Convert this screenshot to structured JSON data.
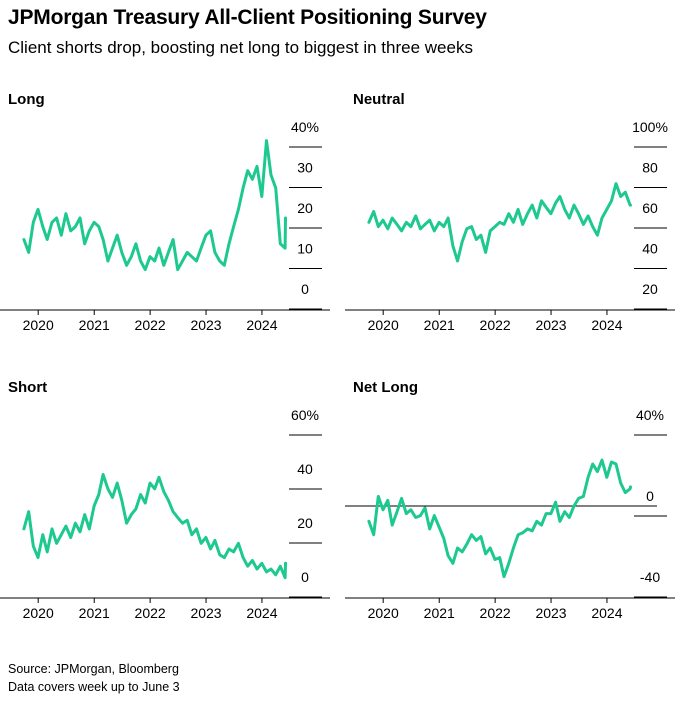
{
  "title": "JPMorgan Treasury All-Client Positioning Survey",
  "subtitle": "Client shorts drop, boosting net long to biggest in three weeks",
  "footer": {
    "source": "Source: JPMorgan, Bloomberg",
    "note": "Data covers week up to June 3"
  },
  "colors": {
    "series": "#1ec98f",
    "axis": "#000000",
    "text": "#000000"
  },
  "chart_data": [
    {
      "type": "line",
      "panel_title": "Long",
      "series": [
        {
          "name": "Long",
          "color": "#1ec98f",
          "x": [
            "2019-09-30",
            "2019-10-31",
            "2019-11-30",
            "2019-12-31",
            "2020-01-31",
            "2020-02-29",
            "2020-03-31",
            "2020-04-30",
            "2020-05-31",
            "2020-06-30",
            "2020-07-31",
            "2020-08-31",
            "2020-09-30",
            "2020-10-31",
            "2020-11-30",
            "2020-12-31",
            "2021-01-31",
            "2021-02-28",
            "2021-03-31",
            "2021-04-30",
            "2021-05-31",
            "2021-06-30",
            "2021-07-31",
            "2021-08-31",
            "2021-09-30",
            "2021-10-31",
            "2021-11-30",
            "2021-12-31",
            "2022-01-31",
            "2022-02-28",
            "2022-03-31",
            "2022-04-30",
            "2022-05-31",
            "2022-06-30",
            "2022-07-31",
            "2022-08-31",
            "2022-09-30",
            "2022-10-31",
            "2022-11-30",
            "2022-12-31",
            "2023-01-31",
            "2023-02-28",
            "2023-03-31",
            "2023-04-30",
            "2023-05-31",
            "2023-06-30",
            "2023-07-31",
            "2023-08-31",
            "2023-09-30",
            "2023-10-31",
            "2023-11-30",
            "2023-12-31",
            "2024-01-31",
            "2024-02-29",
            "2024-03-31",
            "2024-04-30",
            "2024-05-31",
            "2024-06-03"
          ],
          "values": [
            15,
            12,
            19,
            22,
            18,
            15,
            19,
            20,
            16,
            21,
            17,
            18,
            20,
            14,
            17,
            19,
            18,
            15,
            10,
            13,
            16,
            12,
            9,
            11,
            14,
            10,
            8,
            11,
            10,
            13,
            9,
            12,
            15,
            8,
            10,
            12,
            11,
            10,
            13,
            16,
            17,
            12,
            10,
            9,
            14,
            18,
            22,
            27,
            31,
            29,
            32,
            25,
            38,
            30,
            27,
            14,
            13,
            20
          ]
        }
      ],
      "x_ticks": [
        "2020",
        "2021",
        "2022",
        "2023",
        "2024"
      ],
      "y_ticks": [
        "40%",
        "30",
        "20",
        "10",
        "0"
      ],
      "ylim": [
        0,
        40
      ]
    },
    {
      "type": "line",
      "panel_title": "Neutral",
      "series": [
        {
          "name": "Neutral",
          "color": "#1ec98f",
          "x": [
            "2019-09-30",
            "2019-10-31",
            "2019-11-30",
            "2019-12-31",
            "2020-01-31",
            "2020-02-29",
            "2020-03-31",
            "2020-04-30",
            "2020-05-31",
            "2020-06-30",
            "2020-07-31",
            "2020-08-31",
            "2020-09-30",
            "2020-10-31",
            "2020-11-30",
            "2020-12-31",
            "2021-01-31",
            "2021-02-28",
            "2021-03-31",
            "2021-04-30",
            "2021-05-31",
            "2021-06-30",
            "2021-07-31",
            "2021-08-31",
            "2021-09-30",
            "2021-10-31",
            "2021-11-30",
            "2021-12-31",
            "2022-01-31",
            "2022-02-28",
            "2022-03-31",
            "2022-04-30",
            "2022-05-31",
            "2022-06-30",
            "2022-07-31",
            "2022-08-31",
            "2022-09-30",
            "2022-10-31",
            "2022-11-30",
            "2022-12-31",
            "2023-01-31",
            "2023-02-28",
            "2023-03-31",
            "2023-04-30",
            "2023-05-31",
            "2023-06-30",
            "2023-07-31",
            "2023-08-31",
            "2023-09-30",
            "2023-10-31",
            "2023-11-30",
            "2023-12-31",
            "2024-01-31",
            "2024-02-29",
            "2024-03-31",
            "2024-04-30",
            "2024-05-31",
            "2024-06-03"
          ],
          "values": [
            58,
            63,
            56,
            59,
            55,
            60,
            57,
            54,
            58,
            56,
            61,
            55,
            57,
            59,
            54,
            58,
            56,
            60,
            47,
            40,
            49,
            55,
            56,
            50,
            52,
            44,
            54,
            56,
            58,
            57,
            62,
            58,
            64,
            57,
            62,
            66,
            60,
            68,
            65,
            62,
            67,
            70,
            64,
            60,
            66,
            62,
            57,
            61,
            56,
            52,
            60,
            64,
            68,
            76,
            70,
            72,
            66,
            66
          ]
        }
      ],
      "x_ticks": [
        "2020",
        "2021",
        "2022",
        "2023",
        "2024"
      ],
      "y_ticks": [
        "100%",
        "80",
        "60",
        "40",
        "20"
      ],
      "ylim": [
        20,
        100
      ]
    },
    {
      "type": "line",
      "panel_title": "Short",
      "series": [
        {
          "name": "Short",
          "color": "#1ec98f",
          "x": [
            "2019-09-30",
            "2019-10-31",
            "2019-11-30",
            "2019-12-31",
            "2020-01-31",
            "2020-02-29",
            "2020-03-31",
            "2020-04-30",
            "2020-05-31",
            "2020-06-30",
            "2020-07-31",
            "2020-08-31",
            "2020-09-30",
            "2020-10-31",
            "2020-11-30",
            "2020-12-31",
            "2021-01-31",
            "2021-02-28",
            "2021-03-31",
            "2021-04-30",
            "2021-05-31",
            "2021-06-30",
            "2021-07-31",
            "2021-08-31",
            "2021-09-30",
            "2021-10-31",
            "2021-11-30",
            "2021-12-31",
            "2022-01-31",
            "2022-02-28",
            "2022-03-31",
            "2022-04-30",
            "2022-05-31",
            "2022-06-30",
            "2022-07-31",
            "2022-08-31",
            "2022-09-30",
            "2022-10-31",
            "2022-11-30",
            "2022-12-31",
            "2023-01-31",
            "2023-02-28",
            "2023-03-31",
            "2023-04-30",
            "2023-05-31",
            "2023-06-30",
            "2023-07-31",
            "2023-08-31",
            "2023-09-30",
            "2023-10-31",
            "2023-11-30",
            "2023-12-31",
            "2024-01-31",
            "2024-02-29",
            "2024-03-31",
            "2024-04-30",
            "2024-05-31",
            "2024-06-03"
          ],
          "values": [
            22,
            28,
            16,
            12,
            20,
            14,
            22,
            17,
            20,
            23,
            19,
            24,
            21,
            27,
            22,
            30,
            34,
            41,
            36,
            33,
            38,
            32,
            24,
            27,
            29,
            34,
            31,
            38,
            36,
            40,
            35,
            32,
            28,
            26,
            24,
            25,
            20,
            22,
            17,
            19,
            15,
            18,
            13,
            12,
            15,
            14,
            17,
            12,
            9,
            11,
            8,
            10,
            7,
            8,
            6,
            9,
            5,
            10
          ]
        }
      ],
      "x_ticks": [
        "2020",
        "2021",
        "2022",
        "2023",
        "2024"
      ],
      "y_ticks": [
        "60%",
        "40",
        "20",
        "0"
      ],
      "ylim": [
        0,
        60
      ]
    },
    {
      "type": "line",
      "panel_title": "Net Long",
      "series": [
        {
          "name": "Net Long",
          "color": "#1ec98f",
          "x": [
            "2019-09-30",
            "2019-10-31",
            "2019-11-30",
            "2019-12-31",
            "2020-01-31",
            "2020-02-29",
            "2020-03-31",
            "2020-04-30",
            "2020-05-31",
            "2020-06-30",
            "2020-07-31",
            "2020-08-31",
            "2020-09-30",
            "2020-10-31",
            "2020-11-30",
            "2020-12-31",
            "2021-01-31",
            "2021-02-28",
            "2021-03-31",
            "2021-04-30",
            "2021-05-31",
            "2021-06-30",
            "2021-07-31",
            "2021-08-31",
            "2021-09-30",
            "2021-10-31",
            "2021-11-30",
            "2021-12-31",
            "2022-01-31",
            "2022-02-28",
            "2022-03-31",
            "2022-04-30",
            "2022-05-31",
            "2022-06-30",
            "2022-07-31",
            "2022-08-31",
            "2022-09-30",
            "2022-10-31",
            "2022-11-30",
            "2022-12-31",
            "2023-01-31",
            "2023-02-28",
            "2023-03-31",
            "2023-04-30",
            "2023-05-31",
            "2023-06-30",
            "2023-07-31",
            "2023-08-31",
            "2023-09-30",
            "2023-10-31",
            "2023-11-30",
            "2023-12-31",
            "2024-01-31",
            "2024-02-29",
            "2024-03-31",
            "2024-04-30",
            "2024-05-31",
            "2024-06-03"
          ],
          "values": [
            -8,
            -15,
            5,
            -2,
            3,
            -10,
            -3,
            4,
            -4,
            -2,
            -6,
            -5,
            -1,
            -12,
            -5,
            -11,
            -17,
            -26,
            -30,
            -22,
            -24,
            -20,
            -15,
            -18,
            -16,
            -25,
            -22,
            -28,
            -27,
            -37,
            -30,
            -22,
            -15,
            -14,
            -12,
            -13,
            -8,
            -10,
            -4,
            -4,
            2,
            -8,
            -3,
            -6,
            0,
            4,
            5,
            15,
            22,
            18,
            24,
            15,
            23,
            22,
            12,
            7,
            9,
            10
          ]
        }
      ],
      "x_ticks": [
        "2020",
        "2021",
        "2022",
        "2023",
        "2024"
      ],
      "y_ticks": [
        "40%",
        "0",
        "-40"
      ],
      "ylim": [
        -45,
        45
      ],
      "reference_line": 0
    }
  ]
}
